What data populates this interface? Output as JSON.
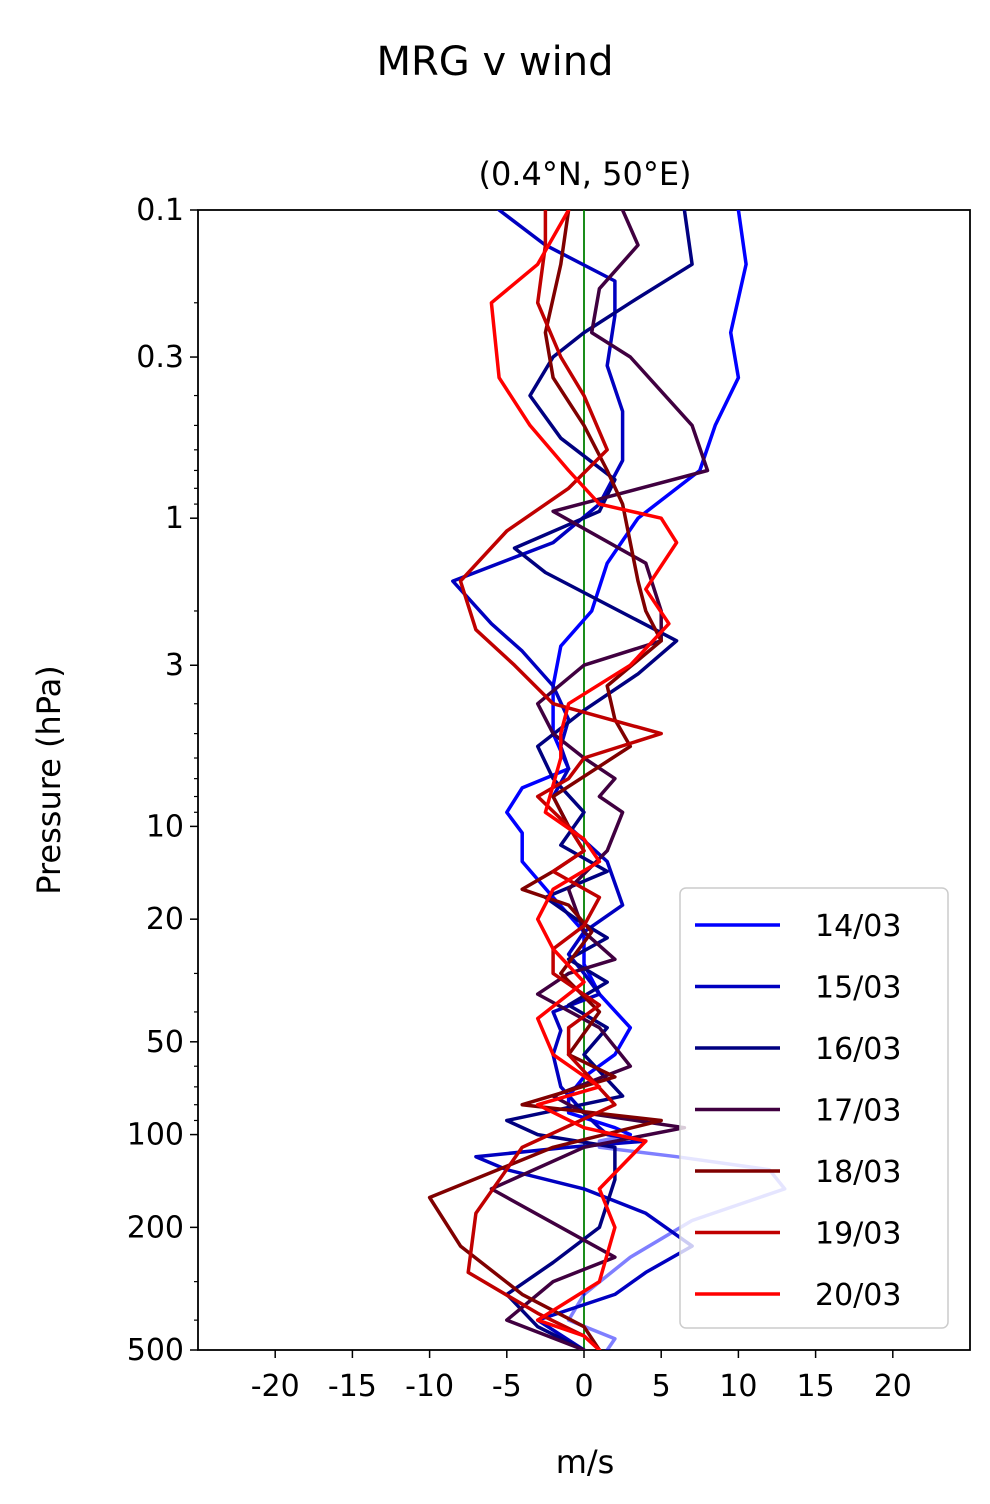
{
  "suptitle": "MRG v wind",
  "chart_data": {
    "type": "line",
    "title": "(0.4°N, 50°E)",
    "xlabel": "m/s",
    "ylabel": "Pressure (hPa)",
    "xlim": [
      -25,
      25
    ],
    "ylim": [
      500,
      0.1
    ],
    "yscale": "log",
    "yticks": [
      {
        "value": 0.1,
        "label": "0.1"
      },
      {
        "value": 0.3,
        "label": "0.3"
      },
      {
        "value": 1,
        "label": "1"
      },
      {
        "value": 3,
        "label": "3"
      },
      {
        "value": 10,
        "label": "10"
      },
      {
        "value": 20,
        "label": "20"
      },
      {
        "value": 50,
        "label": "50"
      },
      {
        "value": 100,
        "label": "100"
      },
      {
        "value": 200,
        "label": "200"
      },
      {
        "value": 500,
        "label": "500"
      }
    ],
    "xticks": [
      {
        "value": -20,
        "label": "-20"
      },
      {
        "value": -15,
        "label": "-15"
      },
      {
        "value": -10,
        "label": "-10"
      },
      {
        "value": -5,
        "label": "-5"
      },
      {
        "value": 0,
        "label": "0"
      },
      {
        "value": 5,
        "label": "5"
      },
      {
        "value": 10,
        "label": "10"
      },
      {
        "value": 15,
        "label": "15"
      },
      {
        "value": 20,
        "label": "20"
      }
    ],
    "zero_line_color": "#008000",
    "legend_position": "lower-right",
    "series": [
      {
        "name": "14/03",
        "color": "#0000ff",
        "x": [
          10,
          10.5,
          9.5,
          10.0,
          8.5,
          7.5,
          3.5,
          1.5,
          0.5,
          -1.5,
          -2,
          -2,
          -1,
          -4,
          -5,
          -4,
          -4,
          -2,
          0,
          0,
          1,
          3,
          2,
          0,
          -1,
          -1,
          2,
          3,
          1,
          1,
          6,
          12,
          13,
          7,
          3,
          0,
          -1,
          2,
          1.5
        ],
        "p": [
          0.1,
          0.15,
          0.25,
          0.35,
          0.5,
          0.7,
          1.0,
          1.4,
          2.0,
          2.6,
          3.5,
          5.0,
          6.5,
          7.5,
          9.0,
          10.5,
          13.0,
          17.0,
          22.0,
          28.0,
          35.0,
          45.0,
          55.0,
          65.0,
          75.0,
          85.0,
          95.0,
          100.0,
          105.0,
          110.0,
          118.0,
          130.0,
          150.0,
          190.0,
          250.0,
          330.0,
          400.0,
          460.0,
          500.0
        ],
        "alpha": [
          1,
          1,
          1,
          1,
          1,
          1,
          1,
          1,
          1,
          1,
          1,
          1,
          1,
          1,
          1,
          1,
          1,
          1,
          1,
          1,
          1,
          1,
          1,
          1,
          1,
          1,
          1,
          1,
          0.5,
          0.5,
          0.5,
          0.5,
          0.5,
          0.5,
          0.5,
          0.5,
          1,
          1,
          1
        ]
      },
      {
        "name": "15/03",
        "color": "#0000c0",
        "x": [
          -5.5,
          -2.5,
          2,
          2,
          1.5,
          2.5,
          2.5,
          1.0,
          -2,
          -8.5,
          -6,
          -4,
          -2,
          -1,
          -1.5,
          -1,
          -2.0,
          -1.0,
          1.5,
          2.5,
          0,
          -1,
          0,
          1,
          -2,
          -1.5,
          -2,
          -1.5,
          0,
          1.0,
          1.5,
          4,
          -1,
          -7,
          -5,
          0,
          4,
          7,
          4,
          2,
          -3,
          0
        ],
        "p": [
          0.1,
          0.13,
          0.17,
          0.22,
          0.32,
          0.45,
          0.65,
          0.9,
          1.2,
          1.6,
          2.2,
          2.7,
          3.5,
          4.5,
          5.5,
          6.5,
          8.0,
          10.0,
          13.0,
          18.0,
          22.0,
          26.0,
          30.0,
          35.0,
          40.0,
          46.0,
          55.0,
          70.0,
          85.0,
          95.0,
          100.0,
          105.0,
          110.0,
          118.0,
          130.0,
          150.0,
          180.0,
          230.0,
          280.0,
          330.0,
          400.0,
          500.0
        ],
        "alpha": [
          1,
          1,
          1,
          1,
          1,
          1,
          1,
          1,
          1,
          1,
          1,
          1,
          1,
          1,
          1,
          1,
          1,
          1,
          1,
          1,
          1,
          1,
          1,
          1,
          1,
          1,
          1,
          1,
          1,
          1,
          1,
          1,
          1,
          1,
          1,
          1,
          1,
          1,
          1,
          1,
          1,
          1
        ]
      },
      {
        "name": "16/03",
        "color": "#000080",
        "x": [
          6.5,
          7,
          3,
          0,
          -2,
          -3.5,
          -1.5,
          2.0,
          1.0,
          -4.5,
          -2.5,
          6,
          3.5,
          0,
          -3,
          -2,
          0,
          -1.5,
          1.5,
          -2.5,
          -0.5,
          1.5,
          -1,
          1.5,
          -1,
          1.5,
          0,
          2.5,
          -5,
          -3,
          2,
          2,
          1,
          -2,
          -5,
          -3,
          0
        ],
        "p": [
          0.1,
          0.15,
          0.2,
          0.25,
          0.3,
          0.4,
          0.55,
          0.75,
          0.95,
          1.25,
          1.5,
          2.5,
          3.2,
          4.2,
          5.5,
          7.0,
          9.0,
          11.5,
          14.0,
          17.0,
          20.0,
          23.0,
          27.0,
          32.0,
          38.0,
          45.0,
          55.0,
          75.0,
          90.0,
          100.0,
          110.0,
          140.0,
          200.0,
          260.0,
          330.0,
          420.0,
          500.0
        ],
        "alpha": [
          1,
          1,
          1,
          1,
          1,
          1,
          1,
          1,
          1,
          1,
          1,
          1,
          1,
          1,
          1,
          1,
          1,
          1,
          1,
          1,
          1,
          1,
          1,
          1,
          1,
          1,
          1,
          1,
          1,
          1,
          1,
          1,
          1,
          1,
          1,
          1,
          1
        ]
      },
      {
        "name": "17/03",
        "color": "#400040",
        "x": [
          2.5,
          3.5,
          1.0,
          0.5,
          3,
          7,
          8,
          -2,
          4,
          5,
          5,
          0,
          -3,
          -2,
          0,
          2,
          1,
          2.5,
          1.5,
          -1,
          0,
          2,
          -1,
          -3,
          1,
          3,
          -2,
          0,
          6.5,
          0,
          -6,
          2,
          -2,
          -5,
          0
        ],
        "p": [
          0.1,
          0.13,
          0.18,
          0.25,
          0.3,
          0.5,
          0.7,
          0.95,
          1.4,
          2.0,
          2.5,
          3.0,
          4.0,
          5.0,
          6.0,
          7.0,
          8.0,
          9.0,
          12.0,
          16.0,
          22.0,
          27.0,
          30.0,
          35.0,
          45.0,
          60.0,
          75.0,
          85.0,
          95.0,
          110.0,
          150.0,
          250.0,
          300.0,
          400.0,
          500.0
        ],
        "alpha": [
          1,
          1,
          1,
          1,
          1,
          1,
          1,
          1,
          1,
          1,
          1,
          1,
          1,
          1,
          1,
          1,
          1,
          1,
          1,
          1,
          1,
          1,
          1,
          1,
          1,
          1,
          1,
          1,
          1,
          1,
          1,
          1,
          1,
          1,
          1
        ]
      },
      {
        "name": "18/03",
        "color": "#800000",
        "x": [
          -1,
          -1.5,
          -2.5,
          -2,
          0,
          1.5,
          2.5,
          3.0,
          3.5,
          4,
          5.0,
          1.5,
          2.0,
          3,
          -2,
          -1,
          0,
          -2,
          -4,
          -1,
          0.5,
          -1.5,
          1,
          -1,
          2,
          -4,
          5,
          -2,
          -10,
          -8,
          -4,
          0,
          1
        ],
        "p": [
          0.1,
          0.15,
          0.25,
          0.35,
          0.5,
          0.7,
          0.9,
          1.2,
          1.6,
          2.0,
          2.5,
          3.5,
          4.5,
          5.5,
          8.0,
          10.0,
          12.0,
          14.0,
          16.0,
          18.0,
          22.0,
          30.0,
          40.0,
          55.0,
          65.0,
          80.0,
          90.0,
          110.0,
          160.0,
          230.0,
          330.0,
          420.0,
          500.0
        ],
        "alpha": [
          1,
          1,
          1,
          1,
          1,
          1,
          1,
          1,
          1,
          1,
          1,
          1,
          1,
          1,
          1,
          1,
          1,
          1,
          1,
          1,
          1,
          1,
          1,
          1,
          1,
          1,
          1,
          1,
          1,
          1,
          1,
          1,
          1
        ]
      },
      {
        "name": "19/03",
        "color": "#c00000",
        "x": [
          -2.5,
          -2.5,
          -3.0,
          -1.5,
          0,
          1.5,
          -1,
          -5,
          -8,
          -7,
          -4.5,
          -2,
          5,
          0,
          -1,
          -3,
          -1,
          0,
          -2,
          1,
          0,
          -2,
          -2,
          1,
          -1,
          -1,
          2,
          -4,
          -7,
          -7.5,
          -3,
          0,
          1
        ],
        "p": [
          0.1,
          0.13,
          0.2,
          0.3,
          0.4,
          0.6,
          0.8,
          1.1,
          1.6,
          2.3,
          3.0,
          4.0,
          5.0,
          6.0,
          7.0,
          8.0,
          10.0,
          12.0,
          14.0,
          17.0,
          21.0,
          25.0,
          30.0,
          38.0,
          45.0,
          55.0,
          80.0,
          110.0,
          180.0,
          280.0,
          380.0,
          450.0,
          500.0
        ],
        "alpha": [
          1,
          1,
          1,
          1,
          1,
          1,
          1,
          1,
          1,
          1,
          1,
          1,
          1,
          1,
          1,
          1,
          1,
          1,
          1,
          1,
          1,
          1,
          1,
          1,
          1,
          1,
          1,
          1,
          1,
          1,
          1,
          1,
          1
        ]
      },
      {
        "name": "20/03",
        "color": "#ff0000",
        "x": [
          -1,
          -3,
          -6,
          -5.5,
          -3.5,
          -1,
          1,
          5,
          6,
          4,
          5.5,
          3,
          -1,
          -1.5,
          -1.5,
          -2.5,
          0,
          1,
          -2,
          -3,
          -2,
          0,
          -3,
          -2,
          1,
          -3,
          0,
          2,
          4,
          1,
          2,
          1,
          -3,
          0,
          1
        ],
        "p": [
          0.1,
          0.15,
          0.2,
          0.35,
          0.5,
          0.7,
          0.9,
          1.0,
          1.2,
          1.7,
          2.2,
          3.0,
          4.0,
          5.0,
          6.0,
          9.0,
          11.0,
          13.0,
          16.0,
          20.0,
          25.0,
          32.0,
          42.0,
          55.0,
          70.0,
          80.0,
          95.0,
          100.0,
          105.0,
          150.0,
          200.0,
          300.0,
          400.0,
          450.0,
          500.0
        ],
        "alpha": [
          1,
          1,
          1,
          1,
          1,
          1,
          1,
          1,
          1,
          1,
          1,
          1,
          1,
          1,
          1,
          1,
          1,
          1,
          1,
          1,
          1,
          1,
          1,
          1,
          1,
          1,
          1,
          1,
          1,
          1,
          1,
          1,
          1,
          1,
          1
        ]
      }
    ]
  }
}
